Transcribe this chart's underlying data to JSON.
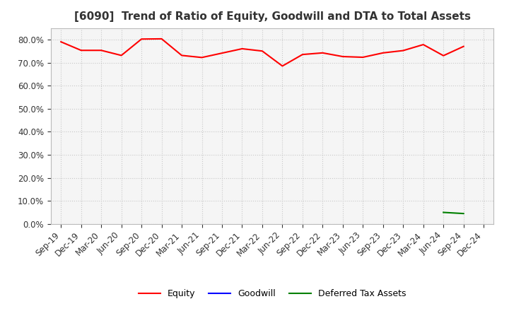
{
  "title": "[6090]  Trend of Ratio of Equity, Goodwill and DTA to Total Assets",
  "x_labels": [
    "Sep-19",
    "Dec-19",
    "Mar-20",
    "Jun-20",
    "Sep-20",
    "Dec-20",
    "Mar-21",
    "Jun-21",
    "Sep-21",
    "Dec-21",
    "Mar-22",
    "Jun-22",
    "Sep-22",
    "Dec-22",
    "Mar-23",
    "Jun-23",
    "Sep-23",
    "Dec-23",
    "Mar-24",
    "Jun-24",
    "Sep-24",
    "Dec-24"
  ],
  "equity": [
    0.79,
    0.753,
    0.753,
    0.731,
    0.802,
    0.803,
    0.731,
    0.722,
    0.741,
    0.76,
    0.75,
    0.685,
    0.735,
    0.742,
    0.726,
    0.723,
    0.742,
    0.752,
    0.778,
    0.73,
    0.77,
    null
  ],
  "goodwill": [
    null,
    null,
    null,
    null,
    null,
    null,
    null,
    null,
    null,
    null,
    null,
    null,
    null,
    null,
    null,
    null,
    null,
    null,
    null,
    null,
    null,
    null
  ],
  "dta": [
    null,
    null,
    null,
    null,
    null,
    null,
    null,
    null,
    null,
    null,
    null,
    null,
    null,
    null,
    null,
    null,
    null,
    null,
    null,
    0.05,
    0.045,
    null
  ],
  "equity_color": "#FF0000",
  "goodwill_color": "#0000FF",
  "dta_color": "#008000",
  "ylim": [
    0.0,
    0.85
  ],
  "yticks": [
    0.0,
    0.1,
    0.2,
    0.3,
    0.4,
    0.5,
    0.6,
    0.7,
    0.8
  ],
  "background_color": "#FFFFFF",
  "grid_color": "#C8C8C8",
  "title_fontsize": 11,
  "tick_fontsize": 8.5,
  "legend_fontsize": 9
}
